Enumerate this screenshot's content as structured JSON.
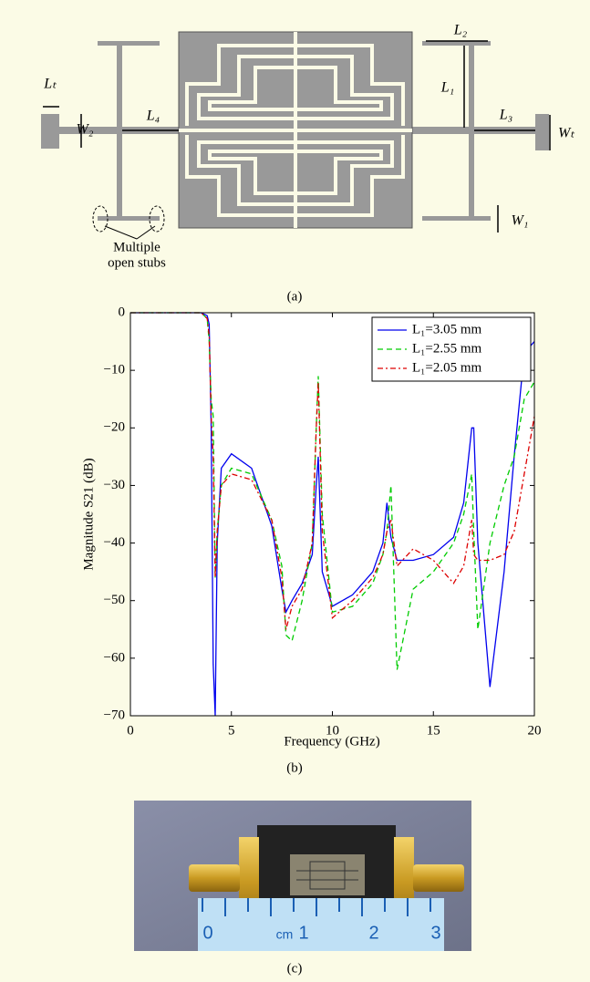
{
  "diagram": {
    "labels": [
      "Lₜ",
      "W₂",
      "L₄",
      "L₂",
      "L₁",
      "L₃",
      "Wₜ",
      "W₁"
    ],
    "note": [
      "Multiple",
      "open stubs"
    ],
    "caption": "(a)"
  },
  "chart_data": {
    "type": "line",
    "xlabel": "Frequency (GHz)",
    "ylabel": "Magnitude S21 (dB)",
    "xlim": [
      0,
      20
    ],
    "ylim": [
      -70,
      0
    ],
    "xticks": [
      0,
      5,
      10,
      15,
      20
    ],
    "yticks": [
      0,
      {
        "value": -10,
        "label": "−10"
      },
      {
        "value": -20,
        "label": "−20"
      },
      {
        "value": -30,
        "label": "−30"
      },
      {
        "value": -40,
        "label": "−40"
      },
      {
        "value": -50,
        "label": "−50"
      },
      {
        "value": -60,
        "label": "−60"
      },
      {
        "value": -70,
        "label": "−70"
      }
    ],
    "legend": "upper right",
    "caption": "(b)",
    "x": [
      0,
      1,
      2,
      3,
      3.5,
      3.8,
      3.9,
      4.0,
      4.1,
      4.2,
      4.3,
      4.5,
      5,
      6,
      7,
      7.5,
      7.7,
      8,
      8.5,
      9,
      9.2,
      9.3,
      9.5,
      10,
      11,
      12,
      12.5,
      12.7,
      12.9,
      13.2,
      14,
      15,
      16,
      16.5,
      16.9,
      17,
      17.2,
      17.8,
      18.5,
      19,
      19.5,
      20
    ],
    "series": [
      {
        "name": "L₁=3.05 mm",
        "color": "#0000ee",
        "dash": "none",
        "values": [
          0,
          0,
          0,
          0,
          0,
          -0.5,
          -2,
          -20,
          -61,
          -70,
          -40,
          -27,
          -24.5,
          -27,
          -37,
          -48,
          -52,
          -50,
          -47,
          -42,
          -30,
          -25,
          -45,
          -51,
          -49,
          -45,
          -40,
          -33,
          -39,
          -43,
          -43,
          -42,
          -39,
          -33,
          -20,
          -20,
          -40,
          -65,
          -45,
          -25,
          -7,
          -5
        ]
      },
      {
        "name": "L₁=2.55 mm",
        "color": "#00cc00",
        "dash": "6 4",
        "values": [
          0,
          0,
          0,
          0,
          0,
          -1,
          -5,
          -15,
          -18,
          -46,
          -38,
          -30,
          -27,
          -28,
          -36,
          -44,
          -56,
          -57,
          -50,
          -40,
          -20,
          -11,
          -35,
          -52,
          -51,
          -47,
          -42,
          -38,
          -30,
          -62,
          -48,
          -45,
          -40,
          -35,
          -28,
          -38,
          -55,
          -40,
          -30,
          -25,
          -15,
          -12
        ]
      },
      {
        "name": "L₁=2.05 mm",
        "color": "#dd0000",
        "dash": "6 3 2 3",
        "values": [
          0,
          0,
          0,
          0,
          0,
          -1,
          -4,
          -18,
          -25,
          -46,
          -38,
          -30,
          -28,
          -29,
          -36,
          -46,
          -55,
          -51,
          -48,
          -40,
          -20,
          -12,
          -38,
          -53,
          -50,
          -46,
          -42,
          -38,
          -36,
          -44,
          -41,
          -43,
          -47,
          -44,
          -36,
          -42,
          -43,
          -43,
          -42,
          -38,
          -28,
          -18
        ]
      }
    ]
  },
  "photo": {
    "ruler_labels": [
      "0",
      "cm",
      "1",
      "2",
      "3"
    ],
    "caption": "(c)"
  }
}
